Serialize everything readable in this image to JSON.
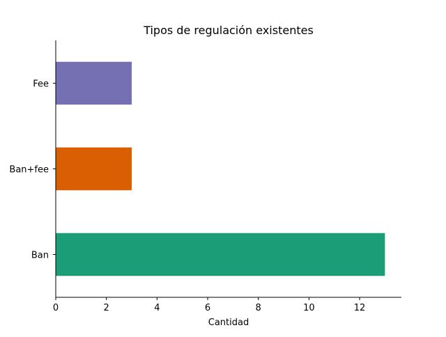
{
  "chart_data": {
    "type": "bar",
    "orientation": "horizontal",
    "title": "Tipos de regulación existentes",
    "xlabel": "Cantidad",
    "ylabel": "",
    "categories": [
      "Ban",
      "Ban+fee",
      "Fee"
    ],
    "values": [
      13,
      3,
      3
    ],
    "colors": [
      "#1b9e77",
      "#d95f02",
      "#7570b3"
    ],
    "xlim": [
      0,
      13.65
    ],
    "xticks": [
      0,
      2,
      4,
      6,
      8,
      10,
      12
    ],
    "grid": false,
    "legend": "none",
    "spines_visible": [
      "left",
      "bottom"
    ]
  }
}
